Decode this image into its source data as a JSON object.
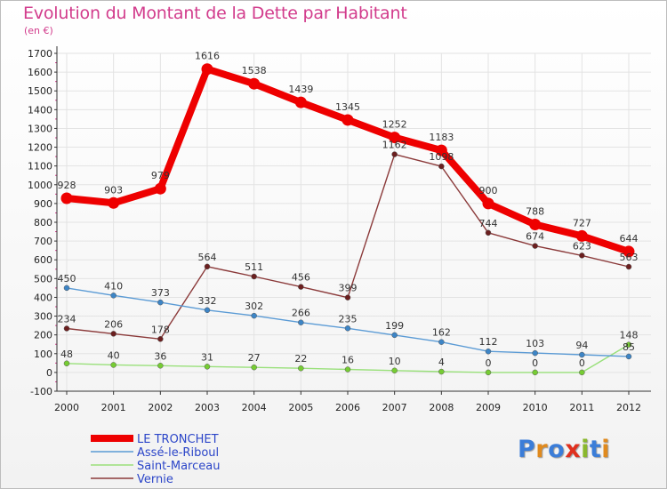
{
  "title": "Evolution du Montant de la Dette par Habitant",
  "subtitle": "(en €)",
  "logo": {
    "text": "Proxiti",
    "letter_colors": [
      "#3b7dd8",
      "#e08a1e",
      "#3b7dd8",
      "#e0301e",
      "#8ab82e",
      "#3b7dd8",
      "#e08a1e"
    ]
  },
  "chart_data": {
    "type": "line",
    "title": "Evolution du Montant de la Dette par Habitant",
    "subtitle": "(en €)",
    "xlabel": "",
    "ylabel": "",
    "x": [
      "2000",
      "2001",
      "2002",
      "2003",
      "2004",
      "2005",
      "2006",
      "2007",
      "2008",
      "2009",
      "2010",
      "2011",
      "2012"
    ],
    "ylim": [
      -100,
      1700
    ],
    "yticks": [
      -100,
      0,
      100,
      200,
      300,
      400,
      500,
      600,
      700,
      800,
      900,
      1000,
      1100,
      1200,
      1300,
      1400,
      1500,
      1600,
      1700
    ],
    "grid": true,
    "legend_position": "bottom-left",
    "series": [
      {
        "name": "LE TRONCHET",
        "color": "#ee0000",
        "marker_color": "#ee0000",
        "values": [
          928,
          903,
          979,
          1616,
          1538,
          1439,
          1345,
          1252,
          1183,
          900,
          788,
          727,
          644
        ],
        "labels": [
          "928",
          "903",
          "979",
          "1616",
          "1538",
          "1439",
          "1345",
          "1252",
          "1183",
          "900",
          "788",
          "727",
          "644"
        ]
      },
      {
        "name": "Assé-le-Riboul",
        "color": "#5b9bd5",
        "marker_color": "#3d85c6",
        "values": [
          450,
          410,
          373,
          332,
          302,
          266,
          235,
          199,
          162,
          112,
          103,
          94,
          85
        ],
        "labels": [
          "450",
          "410",
          "373",
          "332",
          "302",
          "266",
          "235",
          "199",
          "162",
          "112",
          "103",
          "94",
          "85"
        ]
      },
      {
        "name": "Saint-Marceau",
        "color": "#99e07a",
        "marker_color": "#76cc33",
        "values": [
          48,
          40,
          36,
          31,
          27,
          22,
          16,
          10,
          4,
          0,
          0,
          0,
          148
        ],
        "labels": [
          "48",
          "40",
          "36",
          "31",
          "27",
          "22",
          "16",
          "10",
          "4",
          "0",
          "0",
          "0",
          "148"
        ]
      },
      {
        "name": "Vernie",
        "color": "#8b3a3a",
        "marker_color": "#6b1f1f",
        "values": [
          234,
          206,
          178,
          564,
          511,
          456,
          399,
          1162,
          1098,
          744,
          674,
          623,
          563
        ],
        "labels": [
          "234",
          "206",
          "178",
          "564",
          "511",
          "456",
          "399",
          "1162",
          "1098",
          "744",
          "674",
          "623",
          "563"
        ]
      }
    ]
  }
}
